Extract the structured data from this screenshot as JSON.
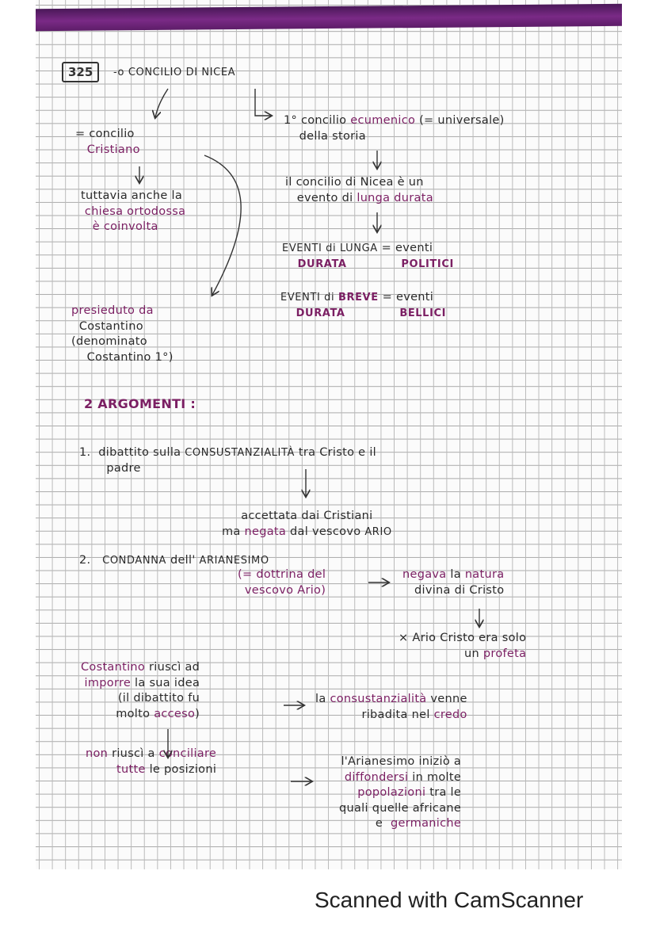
{
  "colors": {
    "ink": "#2a2a2a",
    "accent": "#7b1f63",
    "band": "#6a2478"
  },
  "number_box": "325",
  "blocks": {
    "title": [
      [
        {
          "t": "-o CONCILIO DI NICEA",
          "u": 1
        }
      ]
    ],
    "b1": [
      [
        {
          "t": "= concilio"
        }
      ],
      [
        {
          "t": "   "
        },
        {
          "t": "Cristiano",
          "c": 1
        }
      ]
    ],
    "b2": [
      [
        {
          "t": "tuttavia anche la"
        }
      ],
      [
        {
          "t": " "
        },
        {
          "t": "chiesa ortodossa",
          "c": 1
        }
      ],
      [
        {
          "t": "   "
        },
        {
          "t": "è coinvolta",
          "c": 1
        }
      ]
    ],
    "b3": [
      [
        {
          "t": "presieduto da",
          "c": 1
        }
      ],
      [
        {
          "t": "  Costantino"
        }
      ],
      [
        {
          "t": "(denominato"
        }
      ],
      [
        {
          "t": "    Costantino 1°)"
        }
      ]
    ],
    "r1": [
      [
        {
          "t": "1° concilio "
        },
        {
          "t": "ecumenico",
          "c": 1
        },
        {
          "t": " (= universale)"
        }
      ],
      [
        {
          "t": "    della storia"
        }
      ]
    ],
    "r2": [
      [
        {
          "t": "il concilio di Nicea è un"
        }
      ],
      [
        {
          "t": "   evento di "
        },
        {
          "t": "lunga durata",
          "c": 1
        }
      ]
    ],
    "r3": [
      [
        {
          "t": "EVENTI di ",
          "u": 1
        },
        {
          "t": "LUNGA",
          "u": 1
        },
        {
          "t": " = eventi"
        }
      ],
      [
        {
          "t": "    "
        },
        {
          "t": "DURATA",
          "c": 1,
          "u": 1,
          "b": 1
        },
        {
          "t": "              "
        },
        {
          "t": "POLITICI",
          "c": 1,
          "u": 1,
          "b": 1
        }
      ]
    ],
    "r4": [
      [
        {
          "t": "EVENTI di ",
          "u": 1
        },
        {
          "t": "BREVE",
          "c": 1,
          "u": 1,
          "b": 1
        },
        {
          "t": " = eventi"
        }
      ],
      [
        {
          "t": "    "
        },
        {
          "t": "DURATA",
          "c": 1,
          "u": 1,
          "b": 1
        },
        {
          "t": "              "
        },
        {
          "t": "BELLICI",
          "c": 1,
          "u": 1,
          "b": 1
        }
      ]
    ],
    "h2": [
      [
        {
          "t": "2 ARGOMENTI :",
          "c": 1,
          "b": 1
        }
      ]
    ],
    "p1": [
      [
        {
          "t": "1.  dibattito sulla "
        },
        {
          "t": "CONSUSTANZIALITÀ",
          "u": 1
        },
        {
          "t": " tra Cristo e il"
        }
      ],
      [
        {
          "t": "       padre"
        }
      ]
    ],
    "p1b": [
      [
        {
          "t": "accettata dai Cristiani"
        }
      ],
      [
        {
          "t": "ma "
        },
        {
          "t": "negata",
          "c": 1
        },
        {
          "t": " dal vescovo "
        },
        {
          "t": "ARIO",
          "u": 1
        }
      ]
    ],
    "p2": [
      [
        {
          "t": "2.   "
        },
        {
          "t": "CONDANNA",
          "u": 1
        },
        {
          "t": " dell' "
        },
        {
          "t": "ARIANESIMO",
          "u": 1
        }
      ]
    ],
    "p2b": [
      [
        {
          "t": "(= dottrina del",
          "c": 1
        }
      ],
      [
        {
          "t": "vescovo Ario)",
          "c": 1
        }
      ]
    ],
    "p2c": [
      [
        {
          "t": "negava",
          "c": 1
        },
        {
          "t": " la "
        },
        {
          "t": "natura",
          "c": 1
        }
      ],
      [
        {
          "t": "divina di Cristo"
        }
      ]
    ],
    "p2d": [
      [
        {
          "t": "× Ario Cristo era solo"
        }
      ],
      [
        {
          "t": "un "
        },
        {
          "t": "profeta",
          "c": 1
        }
      ]
    ],
    "c1": [
      [
        {
          "t": "Costantino",
          "c": 1
        },
        {
          "t": " riuscì ad"
        }
      ],
      [
        {
          "t": "imporre",
          "c": 1
        },
        {
          "t": " la sua idea"
        }
      ],
      [
        {
          "t": "(il dibattito fu"
        }
      ],
      [
        {
          "t": "molto "
        },
        {
          "t": "acceso",
          "c": 1
        },
        {
          "t": ")"
        }
      ]
    ],
    "c2": [
      [
        {
          "t": "la "
        },
        {
          "t": "consustanzialità",
          "c": 1
        },
        {
          "t": " venne"
        }
      ],
      [
        {
          "t": "ribadita nel "
        },
        {
          "t": "credo",
          "c": 1
        }
      ]
    ],
    "c3": [
      [
        {
          "t": "non",
          "c": 1
        },
        {
          "t": " riuscì a "
        },
        {
          "t": "conciliare",
          "c": 1
        }
      ],
      [
        {
          "t": "tutte",
          "c": 1
        },
        {
          "t": " le posizioni"
        }
      ]
    ],
    "c4": [
      [
        {
          "t": "l'Arianesimo iniziò a"
        }
      ],
      [
        {
          "t": "diffondersi",
          "c": 1
        },
        {
          "t": " in molte"
        }
      ],
      [
        {
          "t": "popolazioni",
          "c": 1
        },
        {
          "t": " tra le"
        }
      ],
      [
        {
          "t": "quali quelle africane"
        }
      ],
      [
        {
          "t": "e  "
        },
        {
          "t": "germaniche",
          "c": 1
        }
      ]
    ]
  },
  "footer": "Scanned with CamScanner"
}
